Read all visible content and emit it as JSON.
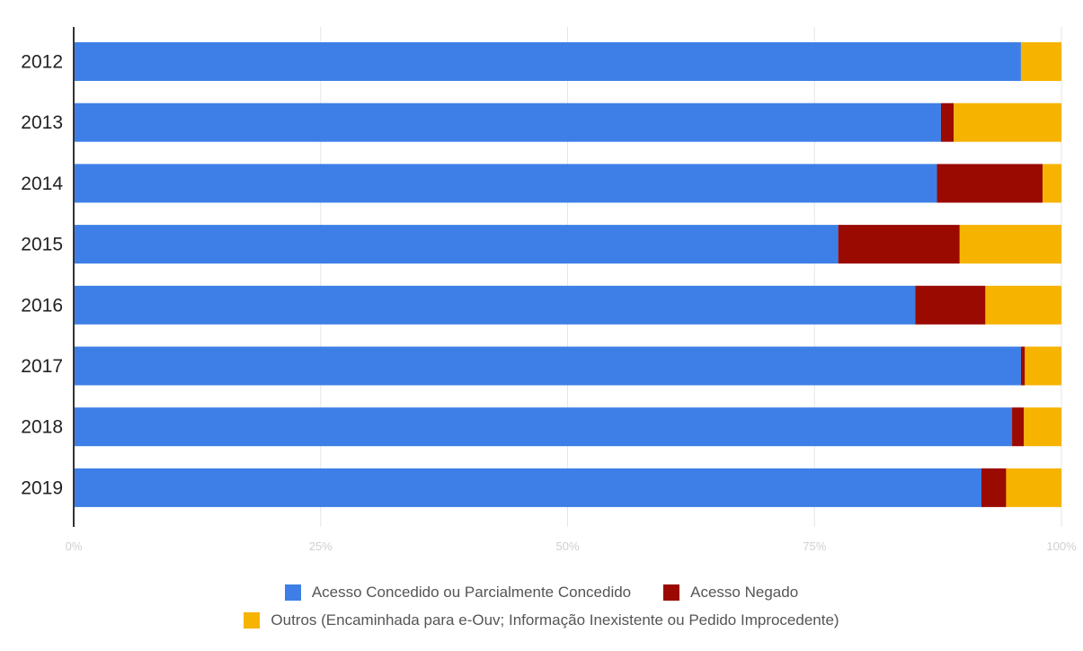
{
  "chart_data": {
    "type": "bar",
    "orientation": "horizontal",
    "stacked": true,
    "normalized": true,
    "categories": [
      "2012",
      "2013",
      "2014",
      "2015",
      "2016",
      "2017",
      "2018",
      "2019"
    ],
    "series": [
      {
        "name": "Acesso Concedido ou Parcialmente Concedido",
        "color": "#3d7fe6",
        "values": [
          95.9,
          87.8,
          87.4,
          77.4,
          85.2,
          95.9,
          95.0,
          91.9
        ]
      },
      {
        "name": "Acesso Negado",
        "color": "#9a0a00",
        "values": [
          0.0,
          1.3,
          10.7,
          12.3,
          7.1,
          0.4,
          1.2,
          2.5
        ]
      },
      {
        "name": "Outros (Encaminhada para e-Ouv; Informação Inexistente ou Pedido Improcedente)",
        "color": "#f6b300",
        "values": [
          4.1,
          10.9,
          1.9,
          10.3,
          7.7,
          3.7,
          3.8,
          5.6
        ]
      }
    ],
    "x_ticks": [
      "0%",
      "25%",
      "50%",
      "75%",
      "100%"
    ],
    "xlim": [
      0,
      100
    ],
    "grid": true,
    "legend_position": "bottom"
  }
}
